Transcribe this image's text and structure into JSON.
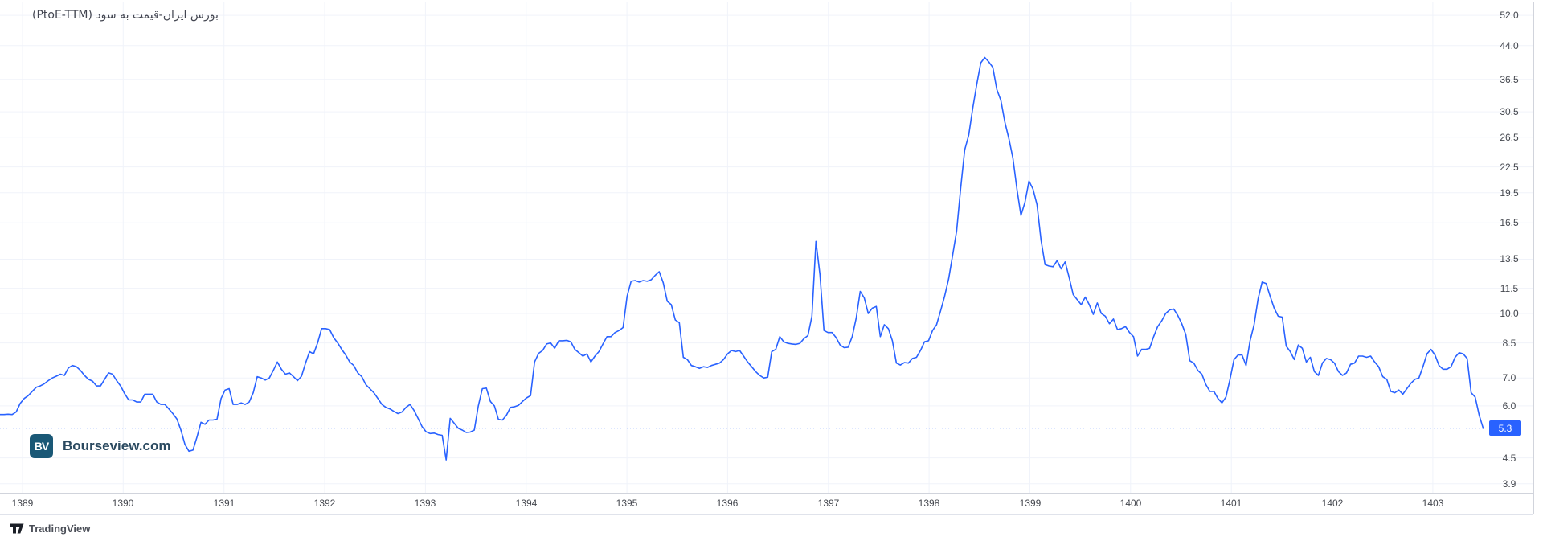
{
  "chart_data": {
    "type": "line",
    "title": "بورس ایران-قیمت به سود (PtoE-TTM)",
    "series_name": "PtoE-TTM",
    "yscale": "log",
    "line_color": "#2962ff",
    "grid_color": "#f0f3fa",
    "current_value": 5.3,
    "current_label": "5.3",
    "x_axis": {
      "labels": [
        1389,
        1390,
        1391,
        1392,
        1393,
        1394,
        1395,
        1396,
        1397,
        1398,
        1399,
        1400,
        1401,
        1402,
        1403
      ]
    },
    "y_axis": {
      "ticks": [
        52.0,
        44.0,
        36.5,
        30.5,
        26.5,
        22.5,
        19.5,
        16.5,
        13.5,
        11.5,
        10.0,
        8.5,
        7.0,
        6.0,
        4.5,
        3.9
      ]
    },
    "x_start_year": 1388.777,
    "x_step_year": 0.0399,
    "values": [
      5.72,
      5.72,
      5.73,
      5.72,
      5.8,
      6.08,
      6.25,
      6.35,
      6.5,
      6.65,
      6.7,
      6.78,
      6.9,
      7.0,
      7.07,
      7.15,
      7.1,
      7.4,
      7.5,
      7.45,
      7.3,
      7.1,
      6.95,
      6.88,
      6.7,
      6.7,
      6.95,
      7.2,
      7.15,
      6.9,
      6.7,
      6.42,
      6.2,
      6.2,
      6.13,
      6.13,
      6.4,
      6.4,
      6.4,
      6.13,
      6.05,
      6.05,
      5.9,
      5.75,
      5.58,
      5.25,
      4.85,
      4.67,
      4.7,
      5.05,
      5.48,
      5.42,
      5.55,
      5.55,
      5.58,
      6.25,
      6.55,
      6.6,
      6.05,
      6.05,
      6.1,
      6.05,
      6.13,
      6.45,
      7.05,
      7.0,
      6.92,
      7.0,
      7.3,
      7.65,
      7.35,
      7.15,
      7.2,
      7.05,
      6.9,
      7.07,
      7.6,
      8.1,
      8.0,
      8.5,
      9.2,
      9.2,
      9.15,
      8.75,
      8.5,
      8.2,
      7.95,
      7.65,
      7.5,
      7.2,
      7.05,
      6.75,
      6.6,
      6.45,
      6.25,
      6.05,
      5.95,
      5.9,
      5.82,
      5.75,
      5.8,
      5.95,
      6.05,
      5.85,
      5.6,
      5.35,
      5.2,
      5.15,
      5.16,
      5.12,
      5.1,
      4.45,
      5.6,
      5.45,
      5.3,
      5.25,
      5.18,
      5.19,
      5.25,
      6.0,
      6.6,
      6.62,
      6.15,
      6.0,
      5.57,
      5.55,
      5.7,
      5.95,
      5.97,
      6.02,
      6.15,
      6.27,
      6.35,
      7.65,
      8.02,
      8.15,
      8.45,
      8.5,
      8.25,
      8.6,
      8.6,
      8.62,
      8.55,
      8.2,
      8.05,
      7.9,
      8.0,
      7.65,
      7.9,
      8.1,
      8.45,
      8.8,
      8.8,
      9.0,
      9.1,
      9.25,
      11.0,
      11.95,
      12.0,
      11.9,
      12.0,
      11.95,
      12.05,
      12.35,
      12.6,
      11.85,
      10.7,
      10.5,
      9.65,
      9.5,
      7.85,
      7.75,
      7.5,
      7.45,
      7.38,
      7.45,
      7.42,
      7.5,
      7.55,
      7.6,
      7.75,
      8.0,
      8.15,
      8.1,
      8.15,
      7.9,
      7.65,
      7.45,
      7.25,
      7.1,
      7.0,
      7.03,
      8.1,
      8.2,
      8.8,
      8.55,
      8.48,
      8.45,
      8.43,
      8.48,
      8.7,
      8.85,
      9.85,
      14.9,
      12.4,
      9.1,
      9.0,
      9.0,
      8.75,
      8.4,
      8.28,
      8.3,
      8.8,
      9.75,
      11.3,
      10.9,
      10.0,
      10.3,
      10.4,
      8.8,
      9.4,
      9.2,
      8.6,
      7.6,
      7.52,
      7.62,
      7.6,
      7.8,
      7.85,
      8.15,
      8.55,
      8.6,
      9.1,
      9.4,
      10.15,
      11.0,
      12.1,
      13.8,
      15.8,
      20.0,
      24.7,
      26.8,
      31.1,
      35.5,
      40.0,
      41.2,
      40.2,
      39.0,
      34.5,
      32.5,
      28.8,
      26.3,
      23.6,
      19.9,
      17.2,
      18.5,
      20.8,
      19.9,
      18.25,
      15.0,
      13.1,
      13.0,
      12.95,
      13.4,
      12.8,
      13.3,
      12.2,
      11.1,
      10.8,
      10.5,
      10.95,
      10.5,
      9.95,
      10.6,
      10.0,
      9.85,
      9.45,
      9.7,
      9.15,
      9.2,
      9.3,
      9.0,
      8.8,
      7.9,
      8.2,
      8.2,
      8.25,
      8.8,
      9.3,
      9.6,
      10.0,
      10.2,
      10.25,
      9.9,
      9.45,
      8.9,
      7.7,
      7.6,
      7.3,
      7.15,
      6.75,
      6.5,
      6.5,
      6.25,
      6.1,
      6.3,
      6.95,
      7.75,
      7.95,
      7.95,
      7.5,
      8.6,
      9.4,
      10.85,
      11.9,
      11.8,
      11.0,
      10.3,
      9.85,
      9.8,
      8.35,
      8.1,
      7.75,
      8.4,
      8.25,
      7.65,
      7.85,
      7.25,
      7.1,
      7.6,
      7.8,
      7.75,
      7.6,
      7.25,
      7.1,
      7.2,
      7.55,
      7.6,
      7.9,
      7.9,
      7.85,
      7.9,
      7.65,
      7.45,
      7.05,
      6.95,
      6.5,
      6.45,
      6.55,
      6.4,
      6.6,
      6.8,
      6.95,
      7.0,
      7.45,
      8.0,
      8.2,
      7.95,
      7.5,
      7.35,
      7.35,
      7.45,
      7.85,
      8.05,
      8.0,
      7.8,
      6.45,
      6.3,
      5.7,
      5.3
    ]
  },
  "branding": {
    "bourseview_monogram": "BV",
    "bourseview_name": "Bourseview.com",
    "tradingview_name": "TradingView"
  }
}
